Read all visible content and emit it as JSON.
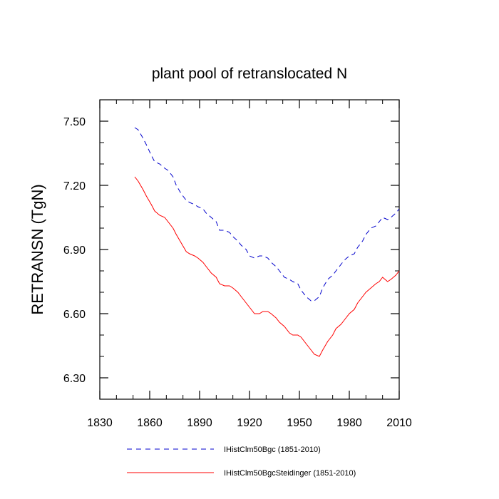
{
  "chart_data": {
    "type": "line",
    "title": "plant pool of retranslocated N",
    "xlabel": "",
    "ylabel": "RETRANSN  (TgN)",
    "xlim": [
      1830,
      2010
    ],
    "ylim": [
      6.2,
      7.6
    ],
    "x_ticks": [
      1830,
      1860,
      1890,
      1920,
      1950,
      1980,
      2010
    ],
    "x_tick_labels": [
      "1830",
      "1860",
      "1890",
      "1920",
      "1950",
      "1980",
      "2010"
    ],
    "y_ticks": [
      6.3,
      6.6,
      6.9,
      7.2,
      7.5
    ],
    "y_tick_labels": [
      "6.30",
      "6.60",
      "6.90",
      "7.20",
      "7.50"
    ],
    "grid": false,
    "legend_position": "bottom",
    "series": [
      {
        "name": "IHistClm50Bgc (1851-2010)",
        "color": "#0000cc",
        "dash": "dashed",
        "x": [
          1851,
          1853,
          1856,
          1858,
          1861,
          1863,
          1866,
          1869,
          1871,
          1874,
          1876,
          1879,
          1882,
          1884,
          1887,
          1889,
          1892,
          1894,
          1897,
          1900,
          1902,
          1905,
          1908,
          1910,
          1913,
          1915,
          1918,
          1920,
          1923,
          1926,
          1928,
          1931,
          1933,
          1936,
          1938,
          1941,
          1944,
          1946,
          1949,
          1951,
          1954,
          1957,
          1959,
          1962,
          1964,
          1967,
          1970,
          1972,
          1975,
          1977,
          1980,
          1983,
          1985,
          1988,
          1990,
          1993,
          1996,
          1998,
          2000,
          2003,
          2005,
          2008,
          2010
        ],
        "values": [
          7.47,
          7.46,
          7.42,
          7.39,
          7.34,
          7.31,
          7.3,
          7.28,
          7.27,
          7.24,
          7.2,
          7.16,
          7.13,
          7.12,
          7.11,
          7.1,
          7.09,
          7.07,
          7.05,
          7.03,
          6.99,
          6.99,
          6.98,
          6.96,
          6.94,
          6.92,
          6.9,
          6.87,
          6.86,
          6.87,
          6.87,
          6.86,
          6.84,
          6.82,
          6.8,
          6.77,
          6.76,
          6.75,
          6.74,
          6.71,
          6.68,
          6.66,
          6.66,
          6.68,
          6.72,
          6.76,
          6.78,
          6.8,
          6.83,
          6.85,
          6.87,
          6.88,
          6.91,
          6.94,
          6.97,
          7.0,
          7.01,
          7.03,
          7.05,
          7.04,
          7.05,
          7.07,
          7.09
        ]
      },
      {
        "name": "IHistClm50BgcSteidinger (1851-2010)",
        "color": "#ff0000",
        "dash": "solid",
        "x": [
          1851,
          1853,
          1856,
          1858,
          1861,
          1863,
          1866,
          1869,
          1871,
          1874,
          1876,
          1879,
          1882,
          1884,
          1887,
          1889,
          1892,
          1894,
          1897,
          1900,
          1902,
          1905,
          1908,
          1910,
          1913,
          1915,
          1918,
          1920,
          1923,
          1926,
          1928,
          1931,
          1933,
          1936,
          1938,
          1941,
          1944,
          1946,
          1949,
          1951,
          1954,
          1957,
          1959,
          1962,
          1964,
          1967,
          1970,
          1972,
          1975,
          1977,
          1980,
          1983,
          1985,
          1988,
          1990,
          1993,
          1996,
          1998,
          2000,
          2003,
          2005,
          2008,
          2010
        ],
        "values": [
          7.24,
          7.22,
          7.18,
          7.15,
          7.11,
          7.08,
          7.06,
          7.05,
          7.03,
          7.0,
          6.97,
          6.93,
          6.89,
          6.88,
          6.87,
          6.86,
          6.84,
          6.82,
          6.79,
          6.77,
          6.74,
          6.73,
          6.73,
          6.72,
          6.7,
          6.68,
          6.65,
          6.63,
          6.6,
          6.6,
          6.61,
          6.61,
          6.6,
          6.58,
          6.56,
          6.54,
          6.51,
          6.5,
          6.5,
          6.49,
          6.46,
          6.43,
          6.41,
          6.4,
          6.43,
          6.47,
          6.5,
          6.53,
          6.55,
          6.57,
          6.6,
          6.62,
          6.65,
          6.68,
          6.7,
          6.72,
          6.74,
          6.75,
          6.77,
          6.75,
          6.76,
          6.78,
          6.8
        ]
      }
    ]
  }
}
